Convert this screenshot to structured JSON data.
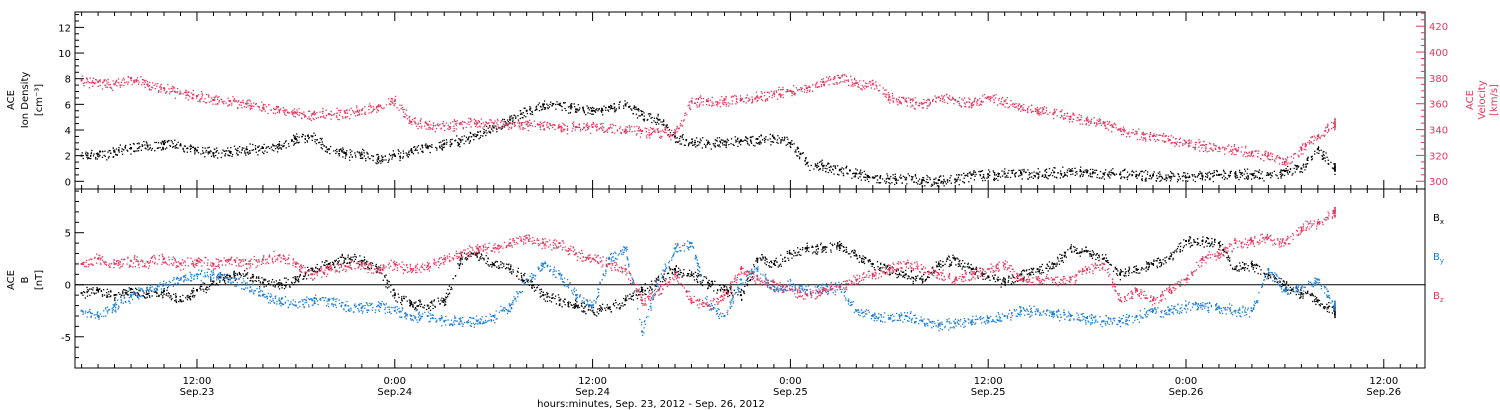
{
  "colors": {
    "black": "#000000",
    "pink": "#e8365e",
    "blue": "#1a7fdc"
  },
  "x_axis": {
    "title": "hours:minutes, Sep. 23, 2012 - Sep. 26, 2012",
    "ticks": [
      {
        "time": "12:00",
        "date": "Sep.23",
        "hours": 12
      },
      {
        "time": "0:00",
        "date": "Sep.24",
        "hours": 24
      },
      {
        "time": "12:00",
        "date": "Sep.24",
        "hours": 36
      },
      {
        "time": "0:00",
        "date": "Sep.25",
        "hours": 48
      },
      {
        "time": "12:00",
        "date": "Sep.25",
        "hours": 60
      },
      {
        "time": "0:00",
        "date": "Sep.26",
        "hours": 72
      },
      {
        "time": "12:00",
        "date": "Sep.26",
        "hours": 84
      }
    ]
  },
  "chart_data": [
    {
      "type": "scatter",
      "panel": "top",
      "x_unit": "hours since Sep. 23, 2012 00:00",
      "xlim": [
        4.6,
        86.5
      ],
      "left_axis": {
        "label_lines": [
          "ACE",
          "Ion Density",
          "[cm⁻³]"
        ],
        "ylim": [
          -0.6,
          13.2
        ],
        "ticks": [
          "0",
          "2",
          "4",
          "6",
          "8",
          "10",
          "12"
        ]
      },
      "right_axis": {
        "label_lines": [
          "ACE",
          "Velocity",
          "[km/s]"
        ],
        "ylim": [
          294,
          431
        ],
        "ticks": [
          "300",
          "320",
          "340",
          "360",
          "380",
          "400",
          "420"
        ]
      },
      "series": [
        {
          "axis": "left",
          "color": "black",
          "x": [
            5,
            6,
            7,
            8,
            9,
            10,
            11,
            12,
            13,
            14,
            15,
            16,
            17,
            18,
            19,
            20,
            21,
            22,
            23,
            24,
            25,
            26,
            27,
            28,
            29,
            30,
            31,
            32,
            33,
            34,
            35,
            36,
            37,
            38,
            39,
            40,
            41,
            42,
            43,
            44,
            45,
            46,
            47,
            48,
            49,
            50,
            51,
            52,
            53,
            54,
            55,
            56,
            57,
            58,
            59,
            60,
            61,
            62,
            63,
            64,
            65,
            66,
            67,
            68,
            69,
            70,
            71,
            72,
            73,
            74,
            75,
            76,
            77,
            78,
            79,
            80,
            81
          ],
          "y": [
            2.0,
            2.1,
            2.3,
            2.6,
            2.8,
            2.9,
            2.8,
            2.4,
            2.2,
            2.3,
            2.5,
            2.6,
            2.8,
            3.3,
            3.5,
            2.5,
            2.2,
            2.1,
            1.8,
            2.0,
            2.4,
            2.7,
            2.9,
            3.2,
            3.6,
            4.2,
            4.8,
            5.5,
            6.0,
            6.0,
            5.6,
            5.5,
            5.8,
            6.0,
            5.2,
            4.8,
            3.5,
            3.0,
            3.0,
            3.1,
            3.2,
            3.3,
            3.4,
            3.0,
            1.4,
            1.2,
            0.9,
            0.6,
            0.3,
            0.2,
            0.15,
            0.1,
            0.1,
            0.15,
            0.5,
            0.55,
            0.6,
            0.65,
            0.6,
            0.7,
            0.8,
            0.7,
            0.6,
            0.55,
            0.5,
            0.45,
            0.35,
            0.3,
            0.4,
            0.5,
            0.6,
            0.55,
            0.5,
            0.8,
            1.0,
            2.5,
            1.0
          ]
        },
        {
          "axis": "right",
          "color": "pink",
          "x": [
            5,
            6,
            7,
            8,
            9,
            10,
            11,
            12,
            13,
            14,
            15,
            16,
            17,
            18,
            19,
            20,
            21,
            22,
            23,
            24,
            25,
            26,
            27,
            28,
            29,
            30,
            31,
            32,
            33,
            34,
            35,
            36,
            37,
            38,
            39,
            40,
            41,
            42,
            43,
            44,
            45,
            46,
            47,
            48,
            49,
            50,
            51,
            52,
            53,
            54,
            55,
            56,
            57,
            58,
            59,
            60,
            61,
            62,
            63,
            64,
            65,
            66,
            67,
            68,
            69,
            70,
            71,
            72,
            73,
            74,
            75,
            76,
            77,
            78,
            79,
            80,
            81
          ],
          "y": [
            378,
            377,
            375,
            380,
            375,
            372,
            368,
            366,
            363,
            362,
            360,
            357,
            355,
            353,
            352,
            352,
            353,
            355,
            358,
            362,
            346,
            344,
            343,
            345,
            345,
            345,
            345,
            344,
            343,
            342,
            342,
            342,
            341,
            340,
            339,
            338,
            337,
            362,
            362,
            363,
            363,
            365,
            368,
            370,
            372,
            377,
            380,
            376,
            375,
            365,
            362,
            360,
            365,
            363,
            360,
            365,
            362,
            358,
            355,
            353,
            350,
            347,
            345,
            340,
            337,
            335,
            332,
            330,
            328,
            326,
            325,
            322,
            320,
            315,
            325,
            335,
            345
          ]
        }
      ]
    },
    {
      "type": "scatter",
      "panel": "bottom",
      "x_unit": "hours since Sep. 23, 2012 00:00",
      "xlim": [
        4.6,
        86.5
      ],
      "y_axis": {
        "label_lines": [
          "ACE",
          "B",
          "[nT]"
        ],
        "ylim": [
          -8.0,
          9.2
        ],
        "ticks": [
          "-5",
          "0",
          "5"
        ]
      },
      "legend": {
        "placement": "right",
        "entries": [
          "Bx",
          "By",
          "Bz"
        ]
      },
      "series": [
        {
          "name": "Bx",
          "color": "black",
          "x": [
            5,
            6,
            7,
            8,
            9,
            10,
            11,
            12,
            13,
            14,
            15,
            16,
            17,
            18,
            19,
            20,
            21,
            22,
            23,
            24,
            25,
            26,
            27,
            28,
            29,
            30,
            31,
            32,
            33,
            34,
            35,
            36,
            37,
            38,
            39,
            40,
            41,
            42,
            43,
            44,
            45,
            46,
            47,
            48,
            49,
            50,
            51,
            52,
            53,
            54,
            55,
            56,
            57,
            58,
            59,
            60,
            61,
            62,
            63,
            64,
            65,
            66,
            67,
            68,
            69,
            70,
            71,
            72,
            73,
            74,
            75,
            76,
            77,
            78,
            79,
            80,
            81
          ],
          "y": [
            -0.8,
            -0.5,
            -1.0,
            -0.4,
            -0.9,
            -0.6,
            -1.5,
            -0.5,
            0.3,
            0.8,
            1.0,
            0.2,
            0.0,
            0.5,
            1.5,
            2.0,
            2.5,
            2.3,
            1.5,
            -1.0,
            -1.8,
            -2.0,
            -1.5,
            2.5,
            3.0,
            2.0,
            1.5,
            0.5,
            -1.0,
            -1.5,
            -2.0,
            -2.5,
            -2.2,
            -1.5,
            -0.5,
            0.5,
            1.5,
            1.0,
            0.2,
            -0.5,
            -1.0,
            2.5,
            2.0,
            3.0,
            3.5,
            3.6,
            3.8,
            2.8,
            2.0,
            1.5,
            1.0,
            0.5,
            2.0,
            2.5,
            1.5,
            0.8,
            0.3,
            1.0,
            1.5,
            2.0,
            3.5,
            3.2,
            2.5,
            1.0,
            1.5,
            2.0,
            2.5,
            4.2,
            4.2,
            4.0,
            1.5,
            2.0,
            1.0,
            0.0,
            -0.8,
            -1.5,
            -2.5
          ]
        },
        {
          "name": "By",
          "color": "blue",
          "x": [
            5,
            6,
            7,
            8,
            9,
            10,
            11,
            12,
            13,
            14,
            15,
            16,
            17,
            18,
            19,
            20,
            21,
            22,
            23,
            24,
            25,
            26,
            27,
            28,
            29,
            30,
            31,
            32,
            33,
            34,
            35,
            36,
            37,
            38,
            39,
            40,
            41,
            42,
            43,
            44,
            45,
            46,
            47,
            48,
            49,
            50,
            51,
            52,
            53,
            54,
            55,
            56,
            57,
            58,
            59,
            60,
            61,
            62,
            63,
            64,
            65,
            66,
            67,
            68,
            69,
            70,
            71,
            72,
            73,
            74,
            75,
            76,
            77,
            78,
            79,
            80,
            81
          ],
          "y": [
            -2.5,
            -3.0,
            -2.0,
            -1.0,
            -0.5,
            0.0,
            0.5,
            1.0,
            1.0,
            0.5,
            0.0,
            -1.0,
            -1.5,
            -2.0,
            -1.5,
            -1.5,
            -2.0,
            -2.2,
            -2.0,
            -2.5,
            -3.0,
            -3.0,
            -3.5,
            -3.5,
            -3.5,
            -3.0,
            -2.0,
            0.5,
            2.0,
            1.0,
            -1.0,
            -2.0,
            2.5,
            3.5,
            -4.5,
            0.5,
            3.5,
            4.0,
            -2.0,
            -3.0,
            0.5,
            1.5,
            -0.5,
            0.0,
            -0.5,
            -0.3,
            -0.2,
            -2.5,
            -3.0,
            -3.2,
            -3.0,
            -3.5,
            -3.8,
            -3.7,
            -3.5,
            -3.2,
            -3.0,
            -2.5,
            -2.5,
            -2.8,
            -3.0,
            -3.2,
            -3.5,
            -3.5,
            -3.0,
            -2.5,
            -2.5,
            -2.0,
            -2.0,
            -2.2,
            -2.5,
            -2.5,
            1.5,
            -0.5,
            -0.3,
            0.5,
            -2.0
          ]
        },
        {
          "name": "Bz",
          "color": "pink",
          "x": [
            5,
            6,
            7,
            8,
            9,
            10,
            11,
            12,
            13,
            14,
            15,
            16,
            17,
            18,
            19,
            20,
            21,
            22,
            23,
            24,
            25,
            26,
            27,
            28,
            29,
            30,
            31,
            32,
            33,
            34,
            35,
            36,
            37,
            38,
            39,
            40,
            41,
            42,
            43,
            44,
            45,
            46,
            47,
            48,
            49,
            50,
            51,
            52,
            53,
            54,
            55,
            56,
            57,
            58,
            59,
            60,
            61,
            62,
            63,
            64,
            65,
            66,
            67,
            68,
            69,
            70,
            71,
            72,
            73,
            74,
            75,
            76,
            77,
            78,
            79,
            80,
            81
          ],
          "y": [
            2.0,
            2.5,
            2.0,
            2.3,
            2.2,
            2.5,
            2.0,
            2.3,
            2.0,
            2.4,
            2.0,
            2.4,
            2.8,
            2.0,
            1.0,
            1.5,
            1.8,
            2.0,
            1.5,
            2.0,
            1.5,
            1.8,
            2.5,
            3.0,
            3.5,
            3.5,
            4.0,
            4.5,
            4.0,
            4.0,
            3.0,
            2.5,
            2.0,
            1.5,
            -1.5,
            -0.5,
            1.0,
            -1.5,
            -2.0,
            -1.0,
            1.5,
            0.5,
            0.0,
            -0.5,
            -1.0,
            -0.5,
            -0.2,
            0.5,
            1.0,
            1.5,
            2.0,
            1.5,
            1.0,
            0.5,
            1.0,
            1.5,
            2.0,
            0.5,
            0.5,
            0.5,
            0.5,
            1.5,
            2.0,
            -1.5,
            -0.5,
            -1.5,
            -0.5,
            0.5,
            2.5,
            3.0,
            4.0,
            4.2,
            4.5,
            4.0,
            5.5,
            6.0,
            7.0
          ]
        }
      ]
    }
  ]
}
